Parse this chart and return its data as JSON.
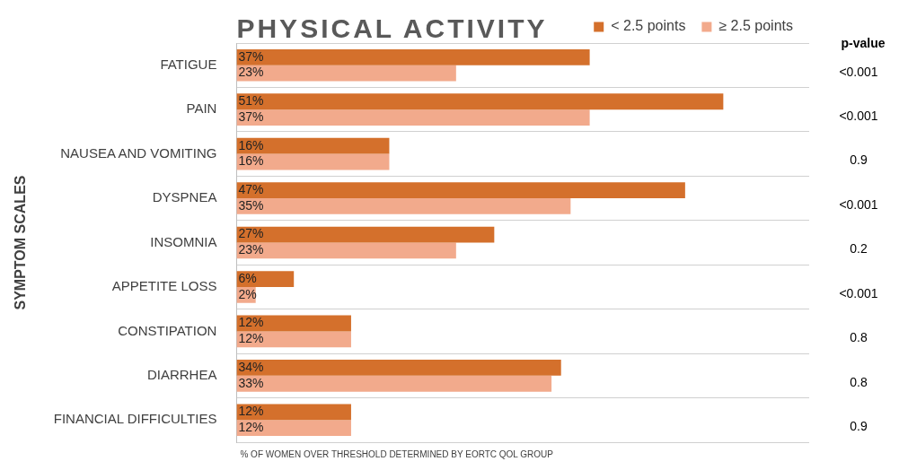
{
  "chart_data": {
    "type": "bar",
    "orientation": "horizontal",
    "title": "PHYSICAL ACTIVITY",
    "ylabel": "SYMPTOM SCALES",
    "xlabel": "% OF WOMEN OVER THRESHOLD DETERMINED BY EORTC QOL GROUP",
    "categories": [
      "FATIGUE",
      "PAIN",
      "NAUSEA AND VOMITING",
      "DYSPNEA",
      "INSOMNIA",
      "APPETITE LOSS",
      "CONSTIPATION",
      "DIARRHEA",
      "FINANCIAL DIFFICULTIES"
    ],
    "series": [
      {
        "name": "< 2.5 points",
        "color": "#d4702c",
        "values": [
          37,
          51,
          16,
          47,
          27,
          6,
          12,
          34,
          12
        ],
        "value_labels": [
          "37%",
          "51%",
          "16%",
          "47%",
          "27%",
          "6%",
          "12%",
          "34%",
          "12%"
        ]
      },
      {
        "name": "≥ 2.5 points",
        "color": "#f2aa8c",
        "values": [
          23,
          37,
          16,
          35,
          23,
          2,
          12,
          33,
          12
        ],
        "value_labels": [
          "23%",
          "37%",
          "16%",
          "35%",
          "23%",
          "2%",
          "12%",
          "33%",
          "12%"
        ]
      }
    ],
    "legend": "top right",
    "grid": "y",
    "tick_labels": "y",
    "annotations": [
      "p-value",
      "<0.001",
      "<0.001",
      "0.9",
      "<0.001",
      "0.2",
      "<0.001",
      "0.8",
      "0.8",
      "0.9"
    ]
  }
}
